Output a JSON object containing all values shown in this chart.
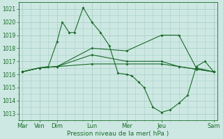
{
  "xlabel": "Pression niveau de la mer( hPa )",
  "background_color": "#cde8e2",
  "grid_color": "#aacec8",
  "line_color": "#1a6b2a",
  "ylim": [
    1012.5,
    1021.5
  ],
  "day_positions": [
    0,
    1,
    2,
    4,
    6,
    8,
    11
  ],
  "day_labels": [
    "Mar",
    "Ven",
    "Dim",
    "Lun",
    "Mer",
    "Jeu",
    "Sam"
  ],
  "xlim": [
    -0.2,
    11.2
  ],
  "series": [
    {
      "x": [
        0,
        1,
        1.5,
        2,
        2.3,
        2.7,
        3,
        3.5,
        4,
        4.5,
        5,
        5.5,
        6,
        6.3,
        6.7,
        7,
        7.5,
        8,
        8.5,
        9,
        9.5,
        10,
        10.5,
        11
      ],
      "y": [
        1016.2,
        1016.5,
        1016.6,
        1018.5,
        1020.0,
        1019.2,
        1019.2,
        1021.1,
        1020.0,
        1019.2,
        1018.2,
        1016.1,
        1016.0,
        1015.9,
        1015.4,
        1015.0,
        1013.5,
        1013.1,
        1013.3,
        1013.8,
        1014.4,
        1016.6,
        1017.0,
        1016.2
      ]
    },
    {
      "x": [
        0,
        1,
        2,
        4,
        6,
        8,
        9,
        10,
        11
      ],
      "y": [
        1016.2,
        1016.5,
        1016.6,
        1018.0,
        1017.8,
        1019.0,
        1019.0,
        1016.5,
        1016.2
      ]
    },
    {
      "x": [
        0,
        1,
        2,
        4,
        6,
        8,
        9,
        11
      ],
      "y": [
        1016.2,
        1016.5,
        1016.6,
        1017.5,
        1017.0,
        1017.0,
        1016.6,
        1016.2
      ]
    },
    {
      "x": [
        0,
        1,
        2,
        4,
        6,
        8,
        9,
        10,
        11
      ],
      "y": [
        1016.2,
        1016.5,
        1016.6,
        1016.8,
        1016.8,
        1016.8,
        1016.6,
        1016.4,
        1016.2
      ]
    }
  ]
}
